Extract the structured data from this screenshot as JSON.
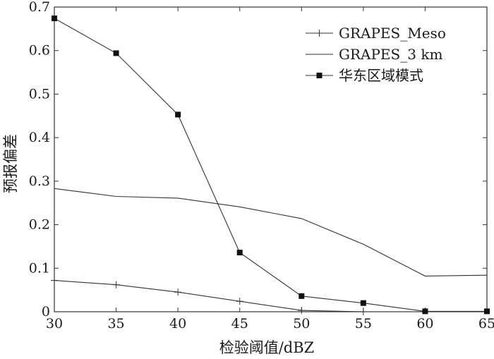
{
  "chart_data": {
    "type": "line",
    "xlabel": "检验阈值/dBZ",
    "ylabel": "预报偏差",
    "xlim": [
      30,
      65
    ],
    "ylim": [
      0,
      0.7
    ],
    "xticks": [
      "30",
      "35",
      "40",
      "45",
      "50",
      "55",
      "60",
      "65"
    ],
    "yticks": [
      "0",
      "0.1",
      "0.2",
      "0.3",
      "0.4",
      "0.5",
      "0.6",
      "0.7"
    ],
    "grid": false,
    "legend": "top-right",
    "series": [
      {
        "name": "GRAPES_Meso",
        "marker": "plus",
        "x": [
          30,
          35,
          40,
          45,
          50,
          55
        ],
        "values": [
          0.072,
          0.062,
          0.045,
          0.024,
          0.003,
          0.0
        ]
      },
      {
        "name": "GRAPES_3 km",
        "marker": "none",
        "x": [
          30,
          35,
          40,
          45,
          50,
          55,
          60,
          65
        ],
        "values": [
          0.283,
          0.265,
          0.261,
          0.241,
          0.214,
          0.155,
          0.082,
          0.084
        ]
      },
      {
        "name": "华东区域模式",
        "marker": "square",
        "x": [
          30,
          35,
          40,
          45,
          50,
          55,
          60,
          65
        ],
        "values": [
          0.674,
          0.594,
          0.453,
          0.136,
          0.036,
          0.02,
          0.001,
          0.001
        ]
      }
    ]
  }
}
